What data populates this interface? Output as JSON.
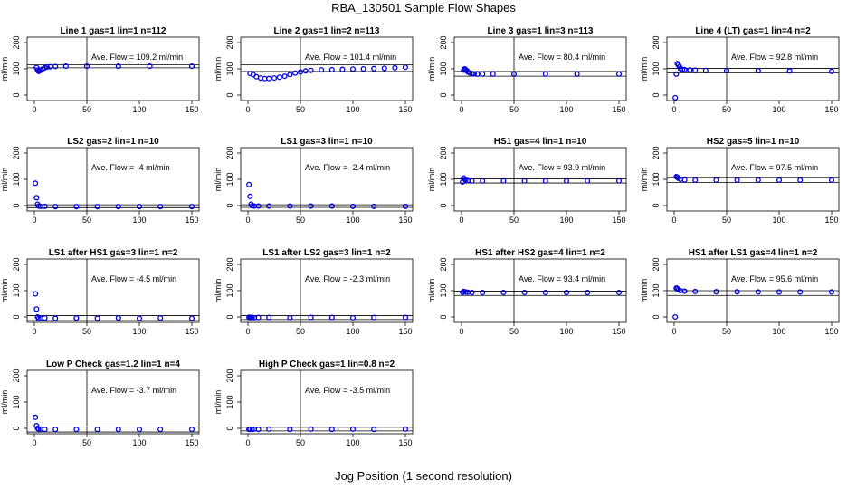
{
  "page": {
    "title": "RBA_130501   Sample Flow Shapes",
    "x_caption": "Jog Position (1 second resolution)"
  },
  "style": {
    "point_color": "#0000dd",
    "line_color": "#000000"
  },
  "chart_data": [
    {
      "type": "scatter",
      "title": "Line 1 gas=1 lin=1 n=112",
      "ylabel": "ml/min",
      "annotation": "Ave. Flow =  109.2  ml/min",
      "xlim": [
        0,
        150
      ],
      "ylim": [
        0,
        200
      ],
      "xticks": [
        0,
        50,
        100,
        150
      ],
      "yticks": [
        0,
        100,
        200
      ],
      "vline": 50,
      "hlines": [
        115,
        104
      ],
      "series": [
        {
          "x": [
            2,
            3,
            4,
            5,
            6,
            8,
            10,
            12,
            15,
            20,
            30,
            50,
            80,
            110,
            150
          ],
          "y": [
            105,
            95,
            90,
            92,
            96,
            100,
            104,
            107,
            108,
            109,
            110,
            110,
            110,
            110,
            110
          ]
        }
      ]
    },
    {
      "type": "scatter",
      "title": "Line 2 gas=1 lin=2 n=113",
      "ylabel": "ml/min",
      "annotation": "Ave. Flow =  101.4  ml/min",
      "xlim": [
        0,
        150
      ],
      "ylim": [
        0,
        200
      ],
      "xticks": [
        0,
        50,
        100,
        150
      ],
      "yticks": [
        0,
        100,
        200
      ],
      "vline": 50,
      "hlines": [
        115,
        90
      ],
      "series": [
        {
          "x": [
            2,
            5,
            8,
            12,
            16,
            20,
            25,
            30,
            35,
            40,
            45,
            50,
            55,
            60,
            70,
            80,
            90,
            100,
            110,
            120,
            130,
            140,
            150
          ],
          "y": [
            82,
            78,
            70,
            65,
            63,
            63,
            65,
            68,
            72,
            78,
            84,
            88,
            92,
            94,
            96,
            97,
            98,
            99,
            100,
            101,
            102,
            104,
            106
          ]
        }
      ]
    },
    {
      "type": "scatter",
      "title": "Line 3 gas=1 lin=3 n=113",
      "ylabel": "ml/min",
      "annotation": "Ave. Flow =  80.4  ml/min",
      "xlim": [
        0,
        150
      ],
      "ylim": [
        0,
        200
      ],
      "xticks": [
        0,
        50,
        100,
        150
      ],
      "yticks": [
        0,
        100,
        200
      ],
      "vline": 50,
      "hlines": [
        90,
        72
      ],
      "series": [
        {
          "x": [
            2,
            3,
            4,
            5,
            6,
            8,
            10,
            12,
            15,
            20,
            30,
            50,
            80,
            110,
            150
          ],
          "y": [
            95,
            100,
            97,
            93,
            88,
            84,
            82,
            81,
            80,
            80,
            80,
            80,
            80,
            80,
            80
          ]
        }
      ]
    },
    {
      "type": "scatter",
      "title": "Line 4 (LT) gas=1 lin=4 n=2",
      "ylabel": "ml/min",
      "annotation": "Ave. Flow =  92.8  ml/min",
      "xlim": [
        0,
        150
      ],
      "ylim": [
        0,
        200
      ],
      "xticks": [
        0,
        50,
        100,
        150
      ],
      "yticks": [
        0,
        100,
        200
      ],
      "vline": 50,
      "hlines": [
        102,
        84
      ],
      "series": [
        {
          "x": [
            1,
            2,
            3,
            4,
            5,
            6,
            8,
            10,
            15,
            20,
            30,
            50,
            80,
            110,
            150
          ],
          "y": [
            -10,
            80,
            120,
            115,
            108,
            100,
            98,
            97,
            96,
            95,
            94,
            93,
            93,
            92,
            90
          ]
        }
      ]
    },
    {
      "type": "scatter",
      "title": "LS2 gas=2 lin=1 n=10",
      "ylabel": "ml/min",
      "annotation": "Ave. Flow =  -4  ml/min",
      "xlim": [
        0,
        150
      ],
      "ylim": [
        0,
        200
      ],
      "xticks": [
        0,
        50,
        100,
        150
      ],
      "yticks": [
        0,
        100,
        200
      ],
      "vline": 50,
      "hlines": [
        3,
        -8
      ],
      "series": [
        {
          "x": [
            1,
            2,
            3,
            4,
            6,
            10,
            20,
            40,
            60,
            80,
            100,
            120,
            150
          ],
          "y": [
            85,
            30,
            5,
            -2,
            -3,
            -3,
            -4,
            -4,
            -4,
            -4,
            -4,
            -4,
            -4
          ]
        }
      ]
    },
    {
      "type": "scatter",
      "title": "LS1 gas=3 lin=1 n=10",
      "ylabel": "ml/min",
      "annotation": "Ave. Flow =  -2.4  ml/min",
      "xlim": [
        0,
        150
      ],
      "ylim": [
        0,
        200
      ],
      "xticks": [
        0,
        50,
        100,
        150
      ],
      "yticks": [
        0,
        100,
        200
      ],
      "vline": 50,
      "hlines": [
        3,
        -7
      ],
      "series": [
        {
          "x": [
            1,
            2,
            3,
            4,
            6,
            10,
            20,
            40,
            60,
            80,
            100,
            120,
            150
          ],
          "y": [
            80,
            35,
            5,
            -1,
            -2,
            -2,
            -2,
            -2,
            -2,
            -2,
            -3,
            -3,
            -3
          ]
        }
      ]
    },
    {
      "type": "scatter",
      "title": "HS1 gas=4 lin=1 n=10",
      "ylabel": "ml/min",
      "annotation": "Ave. Flow =  93.9  ml/min",
      "xlim": [
        0,
        150
      ],
      "ylim": [
        0,
        200
      ],
      "xticks": [
        0,
        50,
        100,
        150
      ],
      "yticks": [
        0,
        100,
        200
      ],
      "vline": 50,
      "hlines": [
        102,
        86
      ],
      "series": [
        {
          "x": [
            1,
            2,
            3,
            4,
            6,
            10,
            20,
            40,
            60,
            80,
            100,
            120,
            150
          ],
          "y": [
            90,
            105,
            100,
            97,
            95,
            94,
            94,
            94,
            94,
            94,
            94,
            94,
            94
          ]
        }
      ]
    },
    {
      "type": "scatter",
      "title": "HS2 gas=5 lin=1 n=10",
      "ylabel": "ml/min",
      "annotation": "Ave. Flow =  97.5  ml/min",
      "xlim": [
        0,
        150
      ],
      "ylim": [
        0,
        200
      ],
      "xticks": [
        0,
        50,
        100,
        150
      ],
      "yticks": [
        0,
        100,
        200
      ],
      "vline": 50,
      "hlines": [
        106,
        88
      ],
      "series": [
        {
          "x": [
            2,
            3,
            4,
            6,
            10,
            20,
            40,
            60,
            80,
            100,
            120,
            150
          ],
          "y": [
            110,
            108,
            104,
            100,
            98,
            97,
            97,
            97,
            97,
            97,
            97,
            97
          ]
        }
      ]
    },
    {
      "type": "scatter",
      "title": "LS1 after HS1 gas=3 lin=1 n=2",
      "ylabel": "ml/min",
      "annotation": "Ave. Flow =  -4.5  ml/min",
      "xlim": [
        0,
        150
      ],
      "ylim": [
        0,
        200
      ],
      "xticks": [
        0,
        50,
        100,
        150
      ],
      "yticks": [
        0,
        100,
        200
      ],
      "vline": 50,
      "hlines": [
        5,
        -14
      ],
      "series": [
        {
          "x": [
            1,
            2,
            3,
            4,
            6,
            10,
            20,
            40,
            60,
            80,
            100,
            120,
            150
          ],
          "y": [
            88,
            30,
            0,
            -6,
            -5,
            -4,
            -5,
            -4,
            -5,
            -4,
            -5,
            -4,
            -5
          ]
        }
      ]
    },
    {
      "type": "scatter",
      "title": "LS1 after LS2 gas=3 lin=1 n=2",
      "ylabel": "ml/min",
      "annotation": "Ave. Flow =  -2.3  ml/min",
      "xlim": [
        0,
        150
      ],
      "ylim": [
        0,
        200
      ],
      "xticks": [
        0,
        50,
        100,
        150
      ],
      "yticks": [
        0,
        100,
        200
      ],
      "vline": 50,
      "hlines": [
        5,
        -10
      ],
      "series": [
        {
          "x": [
            1,
            2,
            3,
            4,
            6,
            10,
            20,
            40,
            60,
            80,
            100,
            120,
            150
          ],
          "y": [
            -1,
            -3,
            -2,
            -2,
            -3,
            -2,
            -2,
            -3,
            -2,
            -2,
            -3,
            -2,
            -2
          ]
        }
      ]
    },
    {
      "type": "scatter",
      "title": "HS1 after HS2 gas=4 lin=1 n=2",
      "ylabel": "ml/min",
      "annotation": "Ave. Flow =  93.4  ml/min",
      "xlim": [
        0,
        150
      ],
      "ylim": [
        0,
        200
      ],
      "xticks": [
        0,
        50,
        100,
        150
      ],
      "yticks": [
        0,
        100,
        200
      ],
      "vline": 50,
      "hlines": [
        98,
        82
      ],
      "series": [
        {
          "x": [
            1,
            2,
            4,
            6,
            10,
            20,
            40,
            60,
            80,
            100,
            120,
            150
          ],
          "y": [
            93,
            97,
            95,
            94,
            93,
            93,
            93,
            93,
            93,
            93,
            93,
            93
          ]
        }
      ]
    },
    {
      "type": "scatter",
      "title": "HS1 after LS1 gas=4 lin=1 n=2",
      "ylabel": "ml/min",
      "annotation": "Ave. Flow =  95.6  ml/min",
      "xlim": [
        0,
        150
      ],
      "ylim": [
        0,
        200
      ],
      "xticks": [
        0,
        50,
        100,
        150
      ],
      "yticks": [
        0,
        100,
        200
      ],
      "vline": 50,
      "hlines": [
        100,
        82
      ],
      "series": [
        {
          "x": [
            1,
            2,
            3,
            4,
            6,
            10,
            20,
            40,
            60,
            80,
            100,
            120,
            150
          ],
          "y": [
            0,
            110,
            108,
            104,
            100,
            98,
            97,
            96,
            96,
            95,
            95,
            95,
            95
          ]
        }
      ]
    },
    {
      "type": "scatter",
      "title": "Low P Check gas=1.2 lin=1 n=4",
      "ylabel": "ml/min",
      "annotation": "Ave. Flow =  -3.7  ml/min",
      "xlim": [
        0,
        150
      ],
      "ylim": [
        0,
        200
      ],
      "xticks": [
        0,
        50,
        100,
        150
      ],
      "yticks": [
        0,
        100,
        200
      ],
      "vline": 50,
      "hlines": [
        5,
        -14
      ],
      "series": [
        {
          "x": [
            1,
            2,
            3,
            4,
            6,
            10,
            20,
            40,
            60,
            80,
            100,
            120,
            150
          ],
          "y": [
            42,
            10,
            0,
            -3,
            -3,
            -4,
            -4,
            -4,
            -4,
            -4,
            -4,
            -4,
            -4
          ]
        }
      ]
    },
    {
      "type": "scatter",
      "title": "High P Check gas=1 lin=0.8 n=2",
      "ylabel": "ml/min",
      "annotation": "Ave. Flow =  -3.5  ml/min",
      "xlim": [
        0,
        150
      ],
      "ylim": [
        0,
        200
      ],
      "xticks": [
        0,
        50,
        100,
        150
      ],
      "yticks": [
        0,
        100,
        200
      ],
      "vline": 50,
      "hlines": [
        4,
        -10
      ],
      "series": [
        {
          "x": [
            1,
            2,
            4,
            6,
            10,
            20,
            40,
            60,
            80,
            100,
            120,
            150
          ],
          "y": [
            -4,
            -3,
            -4,
            -3,
            -4,
            -3,
            -4,
            -3,
            -4,
            -3,
            -4,
            -3
          ]
        }
      ]
    }
  ]
}
